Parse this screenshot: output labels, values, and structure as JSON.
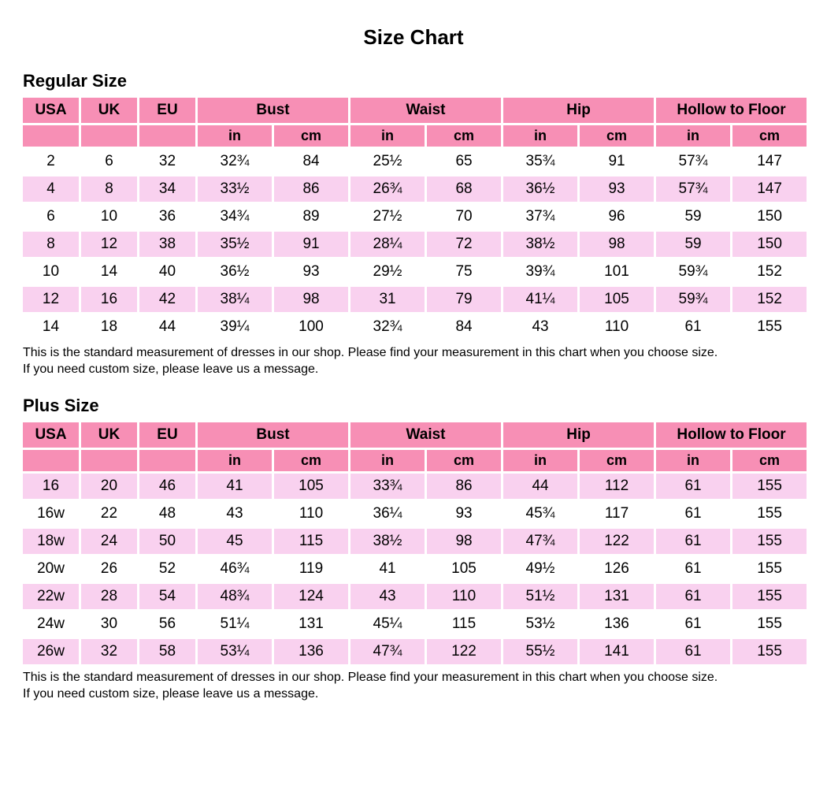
{
  "page": {
    "title": "Size Chart"
  },
  "colors": {
    "header_pink": "#F78FB5",
    "row_pink": "#F9D1EF",
    "row_white": "#FFFFFF"
  },
  "columns": {
    "usa": "USA",
    "uk": "UK",
    "eu": "EU",
    "bust": "Bust",
    "waist": "Waist",
    "hip": "Hip",
    "hollow_to_floor": "Hollow to Floor",
    "unit_in": "in",
    "unit_cm": "cm"
  },
  "note": {
    "line1": "This is the standard measurement of dresses in our shop. Please find your measurement in this chart when you choose size.",
    "line2": "If you need custom size, please leave us a message."
  },
  "regular_size": {
    "heading": "Regular Size",
    "first_row_shaded": false,
    "rows": [
      [
        "2",
        "6",
        "32",
        "32¾",
        "84",
        "25½",
        "65",
        "35¾",
        "91",
        "57¾",
        "147"
      ],
      [
        "4",
        "8",
        "34",
        "33½",
        "86",
        "26¾",
        "68",
        "36½",
        "93",
        "57¾",
        "147"
      ],
      [
        "6",
        "10",
        "36",
        "34¾",
        "89",
        "27½",
        "70",
        "37¾",
        "96",
        "59",
        "150"
      ],
      [
        "8",
        "12",
        "38",
        "35½",
        "91",
        "28¼",
        "72",
        "38½",
        "98",
        "59",
        "150"
      ],
      [
        "10",
        "14",
        "40",
        "36½",
        "93",
        "29½",
        "75",
        "39¾",
        "101",
        "59¾",
        "152"
      ],
      [
        "12",
        "16",
        "42",
        "38¼",
        "98",
        "31",
        "79",
        "41¼",
        "105",
        "59¾",
        "152"
      ],
      [
        "14",
        "18",
        "44",
        "39¼",
        "100",
        "32¾",
        "84",
        "43",
        "110",
        "61",
        "155"
      ]
    ]
  },
  "plus_size": {
    "heading": "Plus Size",
    "first_row_shaded": true,
    "rows": [
      [
        "16",
        "20",
        "46",
        "41",
        "105",
        "33¾",
        "86",
        "44",
        "112",
        "61",
        "155"
      ],
      [
        "16w",
        "22",
        "48",
        "43",
        "110",
        "36¼",
        "93",
        "45¾",
        "117",
        "61",
        "155"
      ],
      [
        "18w",
        "24",
        "50",
        "45",
        "115",
        "38½",
        "98",
        "47¾",
        "122",
        "61",
        "155"
      ],
      [
        "20w",
        "26",
        "52",
        "46¾",
        "119",
        "41",
        "105",
        "49½",
        "126",
        "61",
        "155"
      ],
      [
        "22w",
        "28",
        "54",
        "48¾",
        "124",
        "43",
        "110",
        "51½",
        "131",
        "61",
        "155"
      ],
      [
        "24w",
        "30",
        "56",
        "51¼",
        "131",
        "45¼",
        "115",
        "53½",
        "136",
        "61",
        "155"
      ],
      [
        "26w",
        "32",
        "58",
        "53¼",
        "136",
        "47¾",
        "122",
        "55½",
        "141",
        "61",
        "155"
      ]
    ]
  }
}
